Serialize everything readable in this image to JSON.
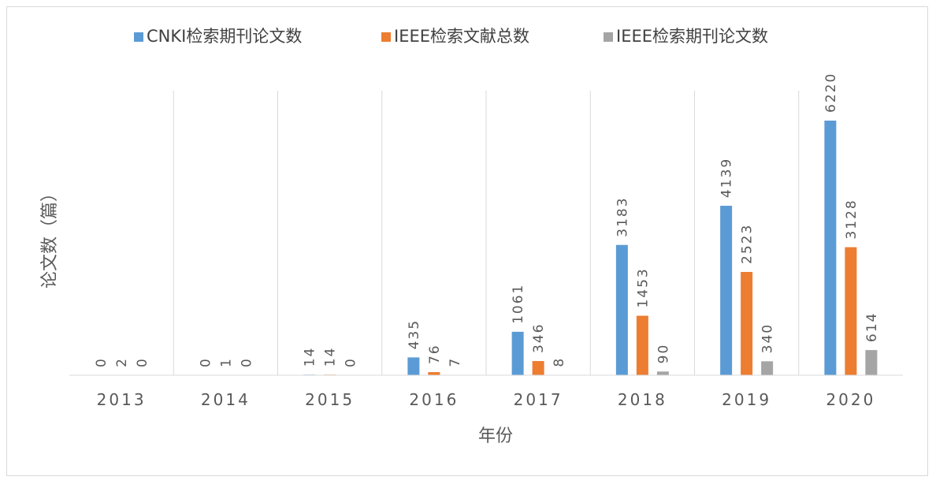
{
  "chart_data": {
    "type": "bar",
    "title": "",
    "xlabel": "年份",
    "ylabel": "论文数（篇）",
    "categories": [
      "2013",
      "2014",
      "2015",
      "2016",
      "2017",
      "2018",
      "2019",
      "2020"
    ],
    "ylim": [
      0,
      7000
    ],
    "grid": "vertical category separators",
    "legend_position": "top",
    "series": [
      {
        "name": "CNKI检索期刊论文数",
        "color": "#5B9BD5",
        "values": [
          0,
          0,
          14,
          435,
          1061,
          3183,
          4139,
          6220
        ]
      },
      {
        "name": "IEEE检索文献总数",
        "color": "#ED7D31",
        "values": [
          2,
          1,
          14,
          76,
          346,
          1453,
          2523,
          3128
        ]
      },
      {
        "name": "IEEE检索期刊论文数",
        "color": "#A5A5A5",
        "values": [
          0,
          0,
          0,
          7,
          8,
          90,
          340,
          614
        ]
      }
    ]
  }
}
